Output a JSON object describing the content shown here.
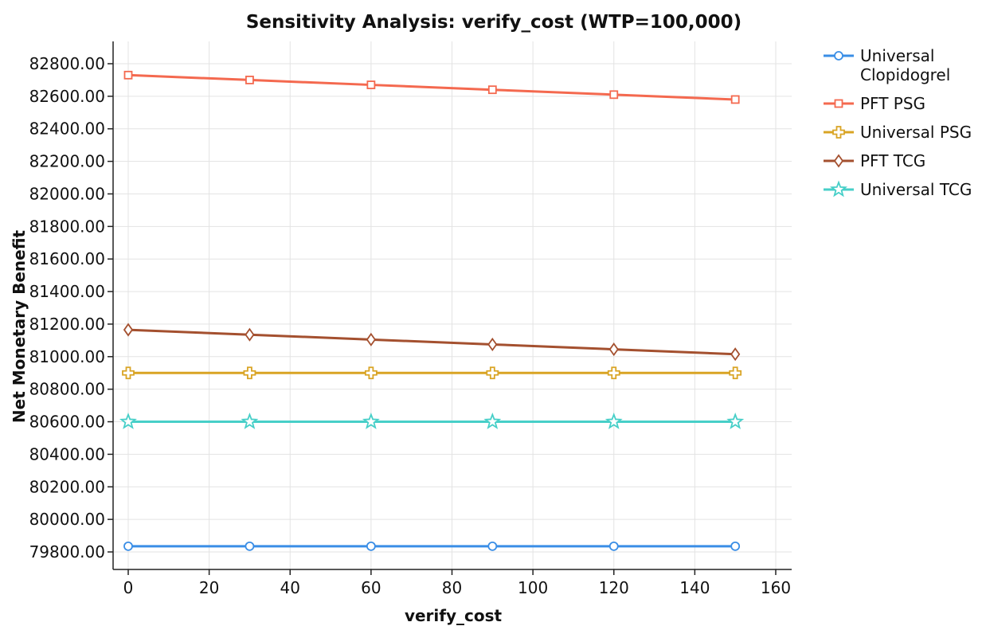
{
  "chart_data": {
    "type": "line",
    "title": "Sensitivity Analysis: verify_cost (WTP=100,000)",
    "xlabel": "verify_cost",
    "ylabel": "Net Monetary Benefit",
    "x": [
      0,
      30,
      60,
      90,
      120,
      150
    ],
    "xlim": [
      0,
      160
    ],
    "ylim": [
      79750,
      82850
    ],
    "x_ticks": [
      "0",
      "20",
      "40",
      "60",
      "80",
      "100",
      "120",
      "140",
      "160"
    ],
    "x_tick_values": [
      0,
      20,
      40,
      60,
      80,
      100,
      120,
      140,
      160
    ],
    "y_ticks": [
      "79800.00",
      "80000.00",
      "80200.00",
      "80400.00",
      "80600.00",
      "80800.00",
      "81000.00",
      "81200.00",
      "81400.00",
      "81600.00",
      "81800.00",
      "82000.00",
      "82200.00",
      "82400.00",
      "82600.00",
      "82800.00"
    ],
    "y_tick_values": [
      79800,
      80000,
      80200,
      80400,
      80600,
      80800,
      81000,
      81200,
      81400,
      81600,
      81800,
      82000,
      82200,
      82400,
      82600,
      82800
    ],
    "grid": true,
    "legend_position": "top-right outside",
    "series": [
      {
        "name": "Universal Clopidogrel",
        "label_lines": [
          "Universal",
          "Clopidogrel"
        ],
        "color": "#3a8ee6",
        "marker": "circle",
        "values": [
          79835,
          79835,
          79835,
          79835,
          79835,
          79835
        ]
      },
      {
        "name": "PFT PSG",
        "label_lines": [
          "PFT PSG"
        ],
        "color": "#f4694f",
        "marker": "square",
        "values": [
          82730,
          82700,
          82670,
          82640,
          82610,
          82580
        ]
      },
      {
        "name": "Universal PSG",
        "label_lines": [
          "Universal PSG"
        ],
        "color": "#d9a424",
        "marker": "plus",
        "values": [
          80900,
          80900,
          80900,
          80900,
          80900,
          80900
        ]
      },
      {
        "name": "PFT TCG",
        "label_lines": [
          "PFT TCG"
        ],
        "color": "#a4502f",
        "marker": "diamond",
        "values": [
          81165,
          81135,
          81105,
          81075,
          81045,
          81015
        ]
      },
      {
        "name": "Universal TCG",
        "label_lines": [
          "Universal TCG"
        ],
        "color": "#47cfc8",
        "marker": "star",
        "values": [
          80600,
          80600,
          80600,
          80600,
          80600,
          80600
        ]
      }
    ]
  }
}
